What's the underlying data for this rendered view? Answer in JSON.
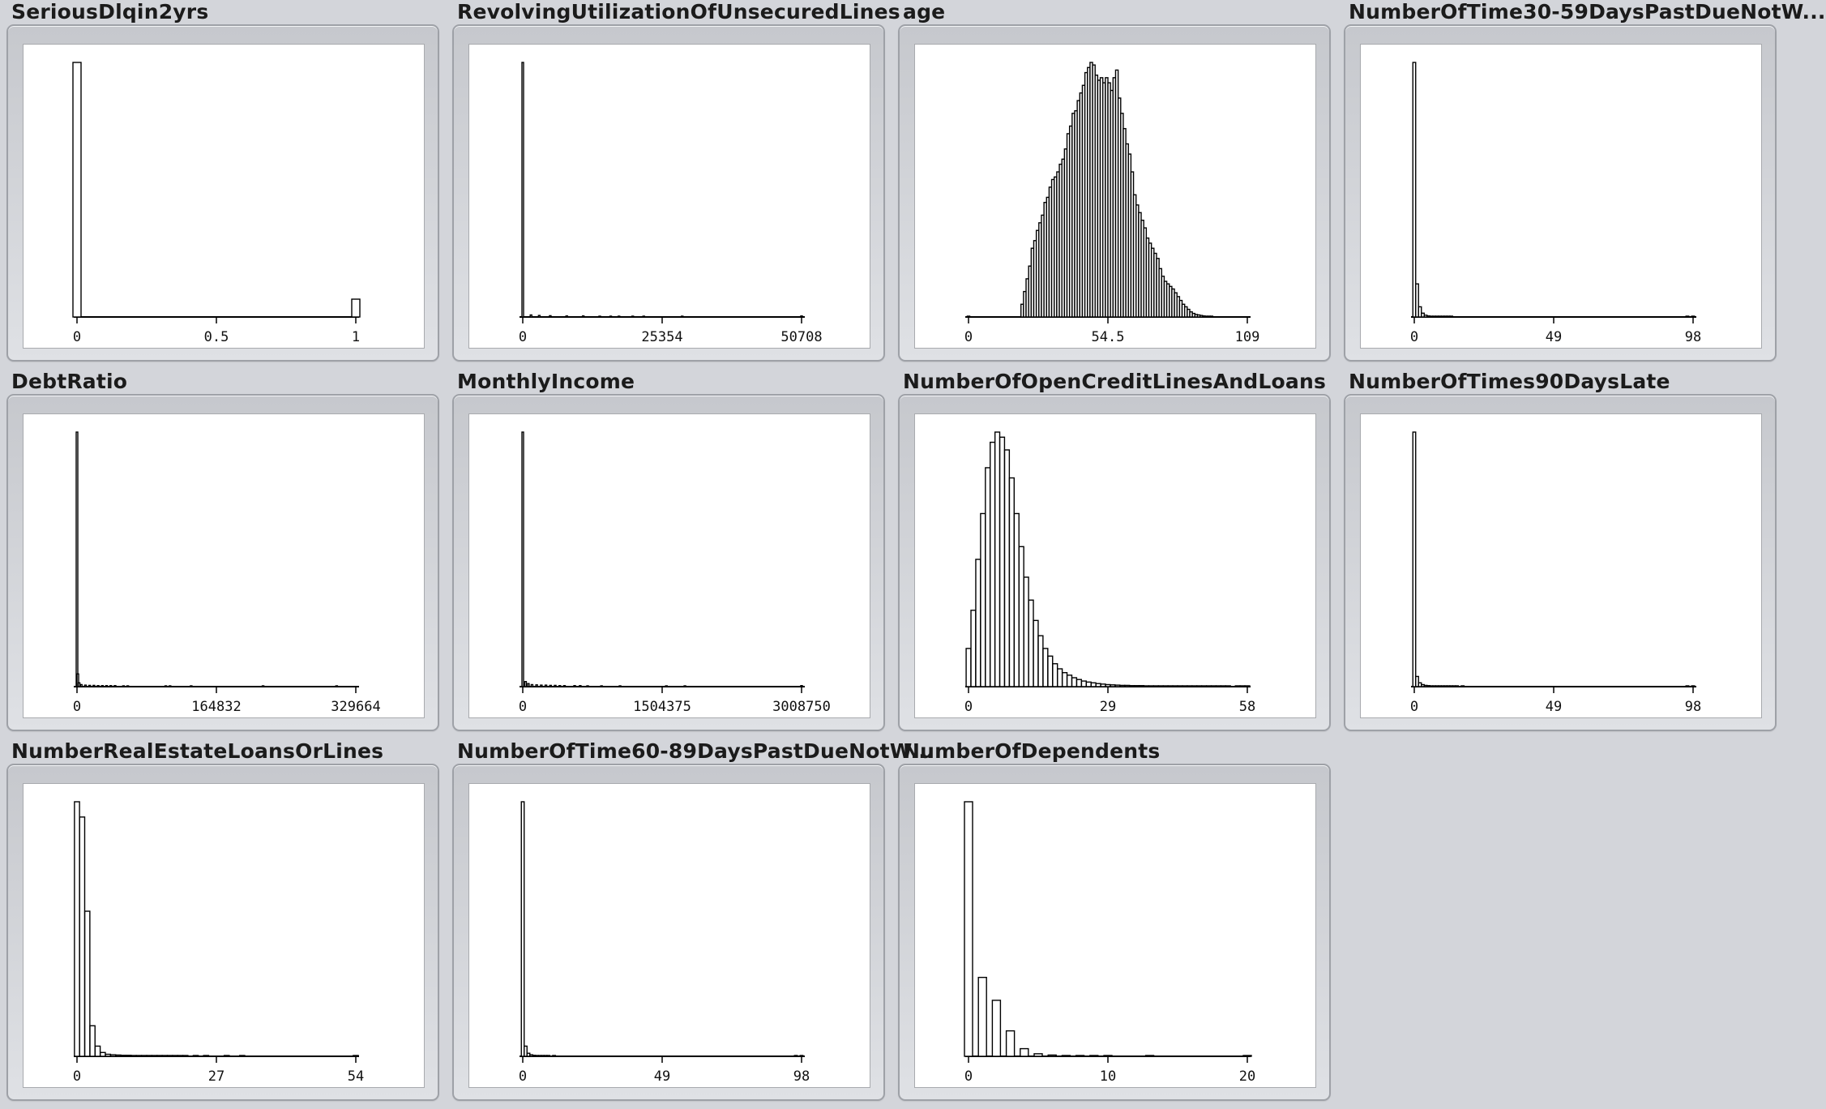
{
  "chart_data": [
    {
      "type": "bar",
      "title": "SeriousDlqin2yrs",
      "xticks": [
        "0",
        "0.5",
        "1"
      ],
      "xlim": [
        0,
        1
      ],
      "bins": [
        {
          "x": 0,
          "y": 1.0
        },
        {
          "x": 1,
          "y": 0.07
        }
      ]
    },
    {
      "type": "bar",
      "title": "RevolvingUtilizationOfUnsecuredLines",
      "xticks": [
        "0",
        "25354",
        "50708"
      ],
      "xlim": [
        0,
        50708
      ],
      "bins": [
        {
          "x": 0,
          "y": 1.0
        },
        {
          "x": 1500,
          "y": 0.008
        },
        {
          "x": 3000,
          "y": 0.006
        },
        {
          "x": 5000,
          "y": 0.005
        },
        {
          "x": 8000,
          "y": 0.004
        },
        {
          "x": 11000,
          "y": 0.004
        },
        {
          "x": 14000,
          "y": 0.003
        },
        {
          "x": 16000,
          "y": 0.003
        },
        {
          "x": 17500,
          "y": 0.003
        },
        {
          "x": 20000,
          "y": 0.003
        },
        {
          "x": 22000,
          "y": 0.003
        },
        {
          "x": 29000,
          "y": 0.003
        },
        {
          "x": 50708,
          "y": 0.004
        }
      ]
    },
    {
      "type": "bar",
      "title": "age",
      "xticks": [
        "0",
        "54.5",
        "109"
      ],
      "xlim": [
        0,
        109
      ],
      "bins": [
        {
          "x": 0,
          "y": 0.003
        },
        {
          "x": 21,
          "y": 0.05
        },
        {
          "x": 22,
          "y": 0.1
        },
        {
          "x": 23,
          "y": 0.15
        },
        {
          "x": 24,
          "y": 0.2
        },
        {
          "x": 25,
          "y": 0.27
        },
        {
          "x": 26,
          "y": 0.3
        },
        {
          "x": 27,
          "y": 0.34
        },
        {
          "x": 28,
          "y": 0.37
        },
        {
          "x": 29,
          "y": 0.4
        },
        {
          "x": 30,
          "y": 0.45
        },
        {
          "x": 31,
          "y": 0.47
        },
        {
          "x": 32,
          "y": 0.51
        },
        {
          "x": 33,
          "y": 0.54
        },
        {
          "x": 34,
          "y": 0.55
        },
        {
          "x": 35,
          "y": 0.57
        },
        {
          "x": 36,
          "y": 0.6
        },
        {
          "x": 37,
          "y": 0.62
        },
        {
          "x": 38,
          "y": 0.66
        },
        {
          "x": 39,
          "y": 0.72
        },
        {
          "x": 40,
          "y": 0.75
        },
        {
          "x": 41,
          "y": 0.8
        },
        {
          "x": 42,
          "y": 0.81
        },
        {
          "x": 43,
          "y": 0.85
        },
        {
          "x": 44,
          "y": 0.88
        },
        {
          "x": 45,
          "y": 0.91
        },
        {
          "x": 46,
          "y": 0.96
        },
        {
          "x": 47,
          "y": 0.98
        },
        {
          "x": 48,
          "y": 1.0
        },
        {
          "x": 49,
          "y": 0.99
        },
        {
          "x": 50,
          "y": 0.95
        },
        {
          "x": 51,
          "y": 0.93
        },
        {
          "x": 52,
          "y": 0.94
        },
        {
          "x": 53,
          "y": 0.92
        },
        {
          "x": 54,
          "y": 0.94
        },
        {
          "x": 55,
          "y": 0.92
        },
        {
          "x": 56,
          "y": 0.89
        },
        {
          "x": 57,
          "y": 0.94
        },
        {
          "x": 58,
          "y": 0.97
        },
        {
          "x": 59,
          "y": 0.86
        },
        {
          "x": 60,
          "y": 0.8
        },
        {
          "x": 61,
          "y": 0.74
        },
        {
          "x": 62,
          "y": 0.68
        },
        {
          "x": 63,
          "y": 0.64
        },
        {
          "x": 64,
          "y": 0.57
        },
        {
          "x": 65,
          "y": 0.48
        },
        {
          "x": 66,
          "y": 0.44
        },
        {
          "x": 67,
          "y": 0.41
        },
        {
          "x": 68,
          "y": 0.38
        },
        {
          "x": 69,
          "y": 0.35
        },
        {
          "x": 70,
          "y": 0.31
        },
        {
          "x": 71,
          "y": 0.29
        },
        {
          "x": 72,
          "y": 0.27
        },
        {
          "x": 73,
          "y": 0.25
        },
        {
          "x": 74,
          "y": 0.23
        },
        {
          "x": 75,
          "y": 0.19
        },
        {
          "x": 76,
          "y": 0.16
        },
        {
          "x": 77,
          "y": 0.14
        },
        {
          "x": 78,
          "y": 0.13
        },
        {
          "x": 79,
          "y": 0.12
        },
        {
          "x": 80,
          "y": 0.11
        },
        {
          "x": 81,
          "y": 0.095
        },
        {
          "x": 82,
          "y": 0.08
        },
        {
          "x": 83,
          "y": 0.065
        },
        {
          "x": 84,
          "y": 0.05
        },
        {
          "x": 85,
          "y": 0.04
        },
        {
          "x": 86,
          "y": 0.03
        },
        {
          "x": 87,
          "y": 0.02
        },
        {
          "x": 88,
          "y": 0.014
        },
        {
          "x": 89,
          "y": 0.01
        },
        {
          "x": 90,
          "y": 0.008
        },
        {
          "x": 91,
          "y": 0.006
        },
        {
          "x": 92,
          "y": 0.004
        },
        {
          "x": 93,
          "y": 0.003
        },
        {
          "x": 94,
          "y": 0.003
        },
        {
          "x": 95,
          "y": 0.002
        }
      ]
    },
    {
      "type": "bar",
      "title": "NumberOfTime30-59DaysPastDueNotW...",
      "xticks": [
        "0",
        "49",
        "98"
      ],
      "xlim": [
        0,
        98
      ],
      "bins": [
        {
          "x": 0,
          "y": 1.0
        },
        {
          "x": 1,
          "y": 0.13
        },
        {
          "x": 2,
          "y": 0.04
        },
        {
          "x": 3,
          "y": 0.015
        },
        {
          "x": 4,
          "y": 0.007
        },
        {
          "x": 5,
          "y": 0.004
        },
        {
          "x": 6,
          "y": 0.003
        },
        {
          "x": 7,
          "y": 0.002
        },
        {
          "x": 8,
          "y": 0.002
        },
        {
          "x": 9,
          "y": 0.002
        },
        {
          "x": 10,
          "y": 0.002
        },
        {
          "x": 11,
          "y": 0.002
        },
        {
          "x": 12,
          "y": 0.002
        },
        {
          "x": 13,
          "y": 0.002
        },
        {
          "x": 96,
          "y": 0.003
        },
        {
          "x": 98,
          "y": 0.003
        }
      ]
    },
    {
      "type": "bar",
      "title": "DebtRatio",
      "xticks": [
        "0",
        "164832",
        "329664"
      ],
      "xlim": [
        0,
        329664
      ],
      "bins": [
        {
          "x": 0,
          "y": 1.0
        },
        {
          "x": 1000,
          "y": 0.05
        },
        {
          "x": 2500,
          "y": 0.015
        },
        {
          "x": 5000,
          "y": 0.008
        },
        {
          "x": 10000,
          "y": 0.006
        },
        {
          "x": 15000,
          "y": 0.005
        },
        {
          "x": 20000,
          "y": 0.005
        },
        {
          "x": 25000,
          "y": 0.004
        },
        {
          "x": 30000,
          "y": 0.004
        },
        {
          "x": 35000,
          "y": 0.004
        },
        {
          "x": 40000,
          "y": 0.004
        },
        {
          "x": 45000,
          "y": 0.004
        },
        {
          "x": 55000,
          "y": 0.003
        },
        {
          "x": 60000,
          "y": 0.003
        },
        {
          "x": 105000,
          "y": 0.003
        },
        {
          "x": 110000,
          "y": 0.003
        },
        {
          "x": 135000,
          "y": 0.003
        },
        {
          "x": 220000,
          "y": 0.003
        },
        {
          "x": 307000,
          "y": 0.003
        }
      ]
    },
    {
      "type": "bar",
      "title": "MonthlyIncome",
      "xticks": [
        "0",
        "1504375",
        "3008750"
      ],
      "xlim": [
        0,
        3008750
      ],
      "bins": [
        {
          "x": 0,
          "y": 1.0
        },
        {
          "x": 30000,
          "y": 0.02
        },
        {
          "x": 60000,
          "y": 0.012
        },
        {
          "x": 100000,
          "y": 0.008
        },
        {
          "x": 150000,
          "y": 0.007
        },
        {
          "x": 200000,
          "y": 0.006
        },
        {
          "x": 250000,
          "y": 0.006
        },
        {
          "x": 300000,
          "y": 0.005
        },
        {
          "x": 350000,
          "y": 0.005
        },
        {
          "x": 400000,
          "y": 0.004
        },
        {
          "x": 450000,
          "y": 0.004
        },
        {
          "x": 560000,
          "y": 0.004
        },
        {
          "x": 620000,
          "y": 0.004
        },
        {
          "x": 700000,
          "y": 0.003
        },
        {
          "x": 850000,
          "y": 0.003
        },
        {
          "x": 1050000,
          "y": 0.003
        },
        {
          "x": 1550000,
          "y": 0.003
        },
        {
          "x": 1750000,
          "y": 0.003
        },
        {
          "x": 3008750,
          "y": 0.004
        }
      ]
    },
    {
      "type": "bar",
      "title": "NumberOfOpenCreditLinesAndLoans",
      "xticks": [
        "0",
        "29",
        "58"
      ],
      "xlim": [
        0,
        58
      ],
      "bins": [
        {
          "x": 0,
          "y": 0.15
        },
        {
          "x": 1,
          "y": 0.3
        },
        {
          "x": 2,
          "y": 0.5
        },
        {
          "x": 3,
          "y": 0.68
        },
        {
          "x": 4,
          "y": 0.86
        },
        {
          "x": 5,
          "y": 0.96
        },
        {
          "x": 6,
          "y": 1.0
        },
        {
          "x": 7,
          "y": 0.98
        },
        {
          "x": 8,
          "y": 0.93
        },
        {
          "x": 9,
          "y": 0.82
        },
        {
          "x": 10,
          "y": 0.68
        },
        {
          "x": 11,
          "y": 0.55
        },
        {
          "x": 12,
          "y": 0.43
        },
        {
          "x": 13,
          "y": 0.34
        },
        {
          "x": 14,
          "y": 0.26
        },
        {
          "x": 15,
          "y": 0.2
        },
        {
          "x": 16,
          "y": 0.15
        },
        {
          "x": 17,
          "y": 0.12
        },
        {
          "x": 18,
          "y": 0.09
        },
        {
          "x": 19,
          "y": 0.07
        },
        {
          "x": 20,
          "y": 0.055
        },
        {
          "x": 21,
          "y": 0.045
        },
        {
          "x": 22,
          "y": 0.035
        },
        {
          "x": 23,
          "y": 0.028
        },
        {
          "x": 24,
          "y": 0.022
        },
        {
          "x": 25,
          "y": 0.018
        },
        {
          "x": 26,
          "y": 0.015
        },
        {
          "x": 27,
          "y": 0.012
        },
        {
          "x": 28,
          "y": 0.01
        },
        {
          "x": 29,
          "y": 0.008
        },
        {
          "x": 30,
          "y": 0.007
        },
        {
          "x": 31,
          "y": 0.006
        },
        {
          "x": 32,
          "y": 0.005
        },
        {
          "x": 33,
          "y": 0.005
        },
        {
          "x": 34,
          "y": 0.004
        },
        {
          "x": 35,
          "y": 0.004
        },
        {
          "x": 36,
          "y": 0.004
        },
        {
          "x": 37,
          "y": 0.003
        },
        {
          "x": 38,
          "y": 0.003
        },
        {
          "x": 39,
          "y": 0.003
        },
        {
          "x": 40,
          "y": 0.003
        },
        {
          "x": 41,
          "y": 0.003
        },
        {
          "x": 42,
          "y": 0.003
        },
        {
          "x": 43,
          "y": 0.003
        },
        {
          "x": 44,
          "y": 0.003
        },
        {
          "x": 45,
          "y": 0.003
        },
        {
          "x": 46,
          "y": 0.003
        },
        {
          "x": 47,
          "y": 0.003
        },
        {
          "x": 48,
          "y": 0.003
        },
        {
          "x": 49,
          "y": 0.003
        },
        {
          "x": 50,
          "y": 0.003
        },
        {
          "x": 51,
          "y": 0.003
        },
        {
          "x": 52,
          "y": 0.003
        },
        {
          "x": 53,
          "y": 0.003
        },
        {
          "x": 54,
          "y": 0.003
        },
        {
          "x": 56,
          "y": 0.003
        },
        {
          "x": 57,
          "y": 0.003
        },
        {
          "x": 58,
          "y": 0.003
        }
      ]
    },
    {
      "type": "bar",
      "title": "NumberOfTimes90DaysLate",
      "xticks": [
        "0",
        "49",
        "98"
      ],
      "xlim": [
        0,
        98
      ],
      "bins": [
        {
          "x": 0,
          "y": 1.0
        },
        {
          "x": 1,
          "y": 0.04
        },
        {
          "x": 2,
          "y": 0.015
        },
        {
          "x": 3,
          "y": 0.008
        },
        {
          "x": 4,
          "y": 0.005
        },
        {
          "x": 5,
          "y": 0.004
        },
        {
          "x": 6,
          "y": 0.003
        },
        {
          "x": 7,
          "y": 0.003
        },
        {
          "x": 8,
          "y": 0.002
        },
        {
          "x": 9,
          "y": 0.002
        },
        {
          "x": 10,
          "y": 0.002
        },
        {
          "x": 11,
          "y": 0.002
        },
        {
          "x": 12,
          "y": 0.002
        },
        {
          "x": 13,
          "y": 0.002
        },
        {
          "x": 14,
          "y": 0.002
        },
        {
          "x": 15,
          "y": 0.002
        },
        {
          "x": 17,
          "y": 0.002
        },
        {
          "x": 96,
          "y": 0.003
        },
        {
          "x": 98,
          "y": 0.003
        }
      ]
    },
    {
      "type": "bar",
      "title": "NumberRealEstateLoansOrLines",
      "xticks": [
        "0",
        "27",
        "54"
      ],
      "xlim": [
        0,
        54
      ],
      "bins": [
        {
          "x": 0,
          "y": 1.0
        },
        {
          "x": 1,
          "y": 0.94
        },
        {
          "x": 2,
          "y": 0.57
        },
        {
          "x": 3,
          "y": 0.12
        },
        {
          "x": 4,
          "y": 0.04
        },
        {
          "x": 5,
          "y": 0.015
        },
        {
          "x": 6,
          "y": 0.008
        },
        {
          "x": 7,
          "y": 0.006
        },
        {
          "x": 8,
          "y": 0.005
        },
        {
          "x": 9,
          "y": 0.004
        },
        {
          "x": 10,
          "y": 0.004
        },
        {
          "x": 11,
          "y": 0.003
        },
        {
          "x": 12,
          "y": 0.003
        },
        {
          "x": 13,
          "y": 0.003
        },
        {
          "x": 14,
          "y": 0.003
        },
        {
          "x": 15,
          "y": 0.003
        },
        {
          "x": 16,
          "y": 0.003
        },
        {
          "x": 17,
          "y": 0.003
        },
        {
          "x": 18,
          "y": 0.003
        },
        {
          "x": 19,
          "y": 0.003
        },
        {
          "x": 20,
          "y": 0.003
        },
        {
          "x": 21,
          "y": 0.003
        },
        {
          "x": 23,
          "y": 0.003
        },
        {
          "x": 25,
          "y": 0.003
        },
        {
          "x": 29,
          "y": 0.003
        },
        {
          "x": 32,
          "y": 0.003
        },
        {
          "x": 54,
          "y": 0.003
        }
      ]
    },
    {
      "type": "bar",
      "title": "NumberOfTime60-89DaysPastDueNotW...",
      "xticks": [
        "0",
        "49",
        "98"
      ],
      "xlim": [
        0,
        98
      ],
      "bins": [
        {
          "x": 0,
          "y": 1.0
        },
        {
          "x": 1,
          "y": 0.04
        },
        {
          "x": 2,
          "y": 0.012
        },
        {
          "x": 3,
          "y": 0.006
        },
        {
          "x": 4,
          "y": 0.004
        },
        {
          "x": 5,
          "y": 0.003
        },
        {
          "x": 6,
          "y": 0.002
        },
        {
          "x": 7,
          "y": 0.002
        },
        {
          "x": 8,
          "y": 0.002
        },
        {
          "x": 9,
          "y": 0.002
        },
        {
          "x": 11,
          "y": 0.002
        },
        {
          "x": 96,
          "y": 0.003
        },
        {
          "x": 98,
          "y": 0.003
        }
      ]
    },
    {
      "type": "bar",
      "title": "NumberOfDependents",
      "xticks": [
        "0",
        "10",
        "20"
      ],
      "xlim": [
        0,
        20
      ],
      "bins": [
        {
          "x": 0,
          "y": 1.0
        },
        {
          "x": 1,
          "y": 0.31
        },
        {
          "x": 2,
          "y": 0.22
        },
        {
          "x": 3,
          "y": 0.1
        },
        {
          "x": 4,
          "y": 0.03
        },
        {
          "x": 5,
          "y": 0.01
        },
        {
          "x": 6,
          "y": 0.005
        },
        {
          "x": 7,
          "y": 0.003
        },
        {
          "x": 8,
          "y": 0.003
        },
        {
          "x": 9,
          "y": 0.003
        },
        {
          "x": 10,
          "y": 0.003
        },
        {
          "x": 13,
          "y": 0.003
        },
        {
          "x": 20,
          "y": 0.003
        }
      ]
    }
  ]
}
